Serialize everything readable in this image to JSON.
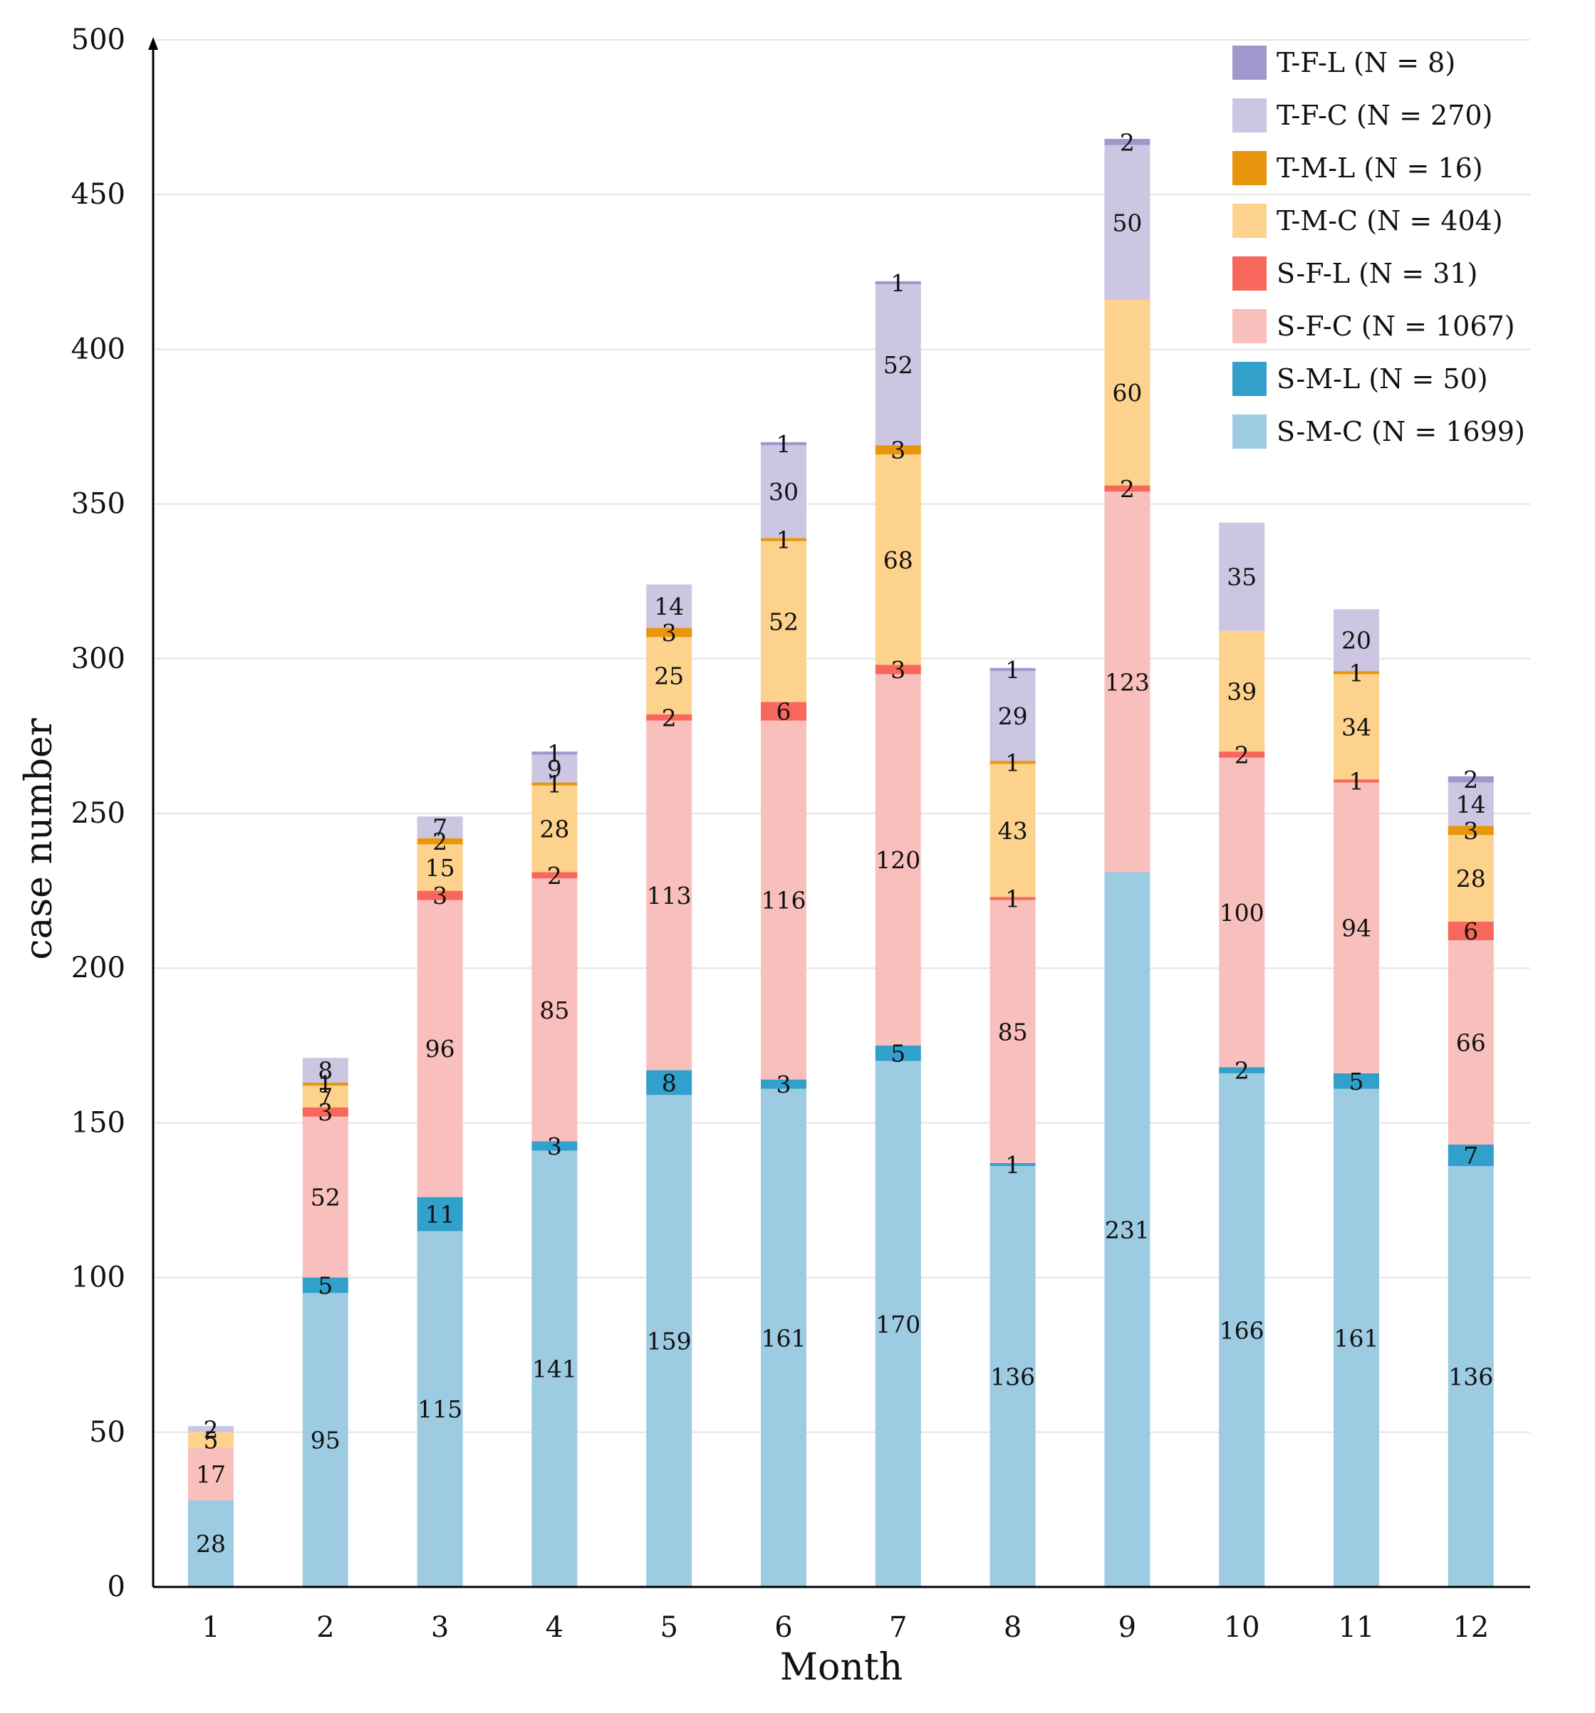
{
  "chart_data": {
    "type": "bar",
    "stacked": true,
    "xlabel": "Month",
    "ylabel": "case number",
    "ylim": [
      0,
      500
    ],
    "yticks": [
      0,
      50,
      100,
      150,
      200,
      250,
      300,
      350,
      400,
      450,
      500
    ],
    "grid": true,
    "legend_position": "top-right",
    "categories": [
      "1",
      "2",
      "3",
      "4",
      "5",
      "6",
      "7",
      "8",
      "9",
      "10",
      "11",
      "12"
    ],
    "series": [
      {
        "name": "S-M-C",
        "legend": "S-M-C (N = 1699)",
        "color": "#9ccbe2",
        "values": [
          28,
          95,
          115,
          141,
          159,
          161,
          170,
          136,
          231,
          166,
          161,
          136
        ]
      },
      {
        "name": "S-M-L",
        "legend": "S-M-L (N = 50)",
        "color": "#31a0cb",
        "values": [
          0,
          5,
          11,
          3,
          8,
          3,
          5,
          1,
          0,
          2,
          5,
          7
        ]
      },
      {
        "name": "S-F-C",
        "legend": "S-F-C (N = 1067)",
        "color": "#f8bfbc",
        "values": [
          17,
          52,
          96,
          85,
          113,
          116,
          120,
          85,
          123,
          100,
          94,
          66
        ]
      },
      {
        "name": "S-F-L",
        "legend": "S-F-L (N = 31)",
        "color": "#f8675c",
        "values": [
          0,
          3,
          3,
          2,
          2,
          6,
          3,
          1,
          2,
          2,
          1,
          6
        ]
      },
      {
        "name": "T-M-C",
        "legend": "T-M-C (N = 404)",
        "color": "#fdd28c",
        "values": [
          5,
          7,
          15,
          28,
          25,
          52,
          68,
          43,
          60,
          39,
          34,
          28
        ]
      },
      {
        "name": "T-M-L",
        "legend": "T-M-L (N = 16)",
        "color": "#e9960f",
        "values": [
          0,
          1,
          2,
          1,
          3,
          1,
          3,
          1,
          0,
          0,
          1,
          3
        ]
      },
      {
        "name": "T-F-C",
        "legend": "T-F-C (N = 270)",
        "color": "#cdc6e2",
        "values": [
          2,
          8,
          7,
          9,
          14,
          30,
          52,
          29,
          50,
          35,
          20,
          14
        ]
      },
      {
        "name": "T-F-L",
        "legend": "T-F-L (N = 8)",
        "color": "#a297cd",
        "values": [
          0,
          0,
          0,
          1,
          0,
          1,
          1,
          1,
          2,
          0,
          0,
          2
        ]
      }
    ],
    "legend_order": [
      "T-F-L",
      "T-F-C",
      "T-M-L",
      "T-M-C",
      "S-F-L",
      "S-F-C",
      "S-M-L",
      "S-M-C"
    ]
  }
}
